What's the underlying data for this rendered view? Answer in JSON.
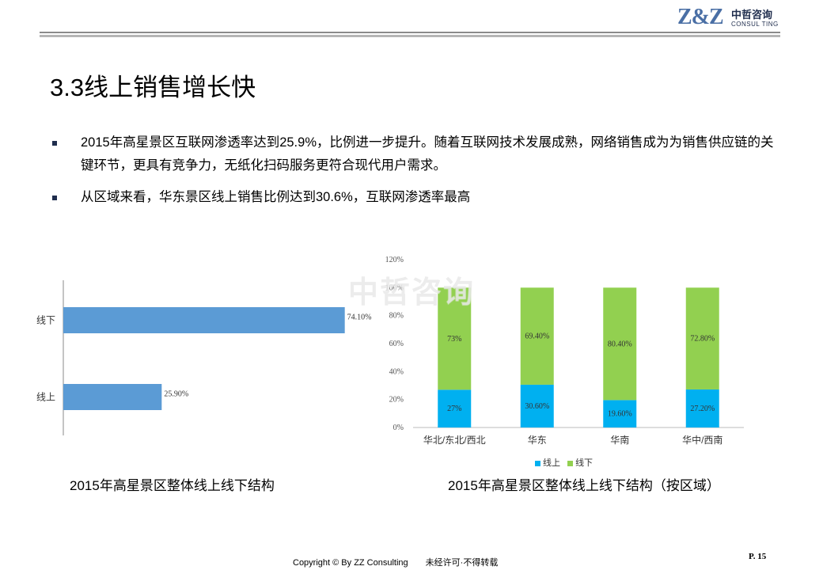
{
  "header": {
    "logo_mark": "Z&Z",
    "logo_cn": "中哲咨询",
    "logo_en": "CONSUL TING"
  },
  "title": "3.3线上销售增长快",
  "bullets": [
    "2015年高星景区互联网渗透率达到25.9%，比例进一步提升。随着互联网技术发展成熟，网络销售成为为销售供应链的关键环节，更具有竞争力，无纸化扫码服务更符合现代用户需求。",
    "从区域来看，华东景区线上销售比例达到30.6%，互联网渗透率最高"
  ],
  "watermark": "中哲咨询",
  "chart_data": [
    {
      "type": "bar",
      "orientation": "horizontal",
      "categories": [
        "线下",
        "线上"
      ],
      "values": [
        74.1,
        25.9
      ],
      "value_labels": [
        "74.10%",
        "25.90%"
      ],
      "title": "2015年高星景区整体线上线下结构",
      "xlim": [
        0,
        100
      ],
      "grid": false,
      "color": "#5b9bd5"
    },
    {
      "type": "bar",
      "stacked": true,
      "categories": [
        "华北/东北/西北",
        "华东",
        "华南",
        "华中/西南"
      ],
      "series": [
        {
          "name": "线上",
          "values": [
            27,
            30.6,
            19.6,
            27.2
          ],
          "labels": [
            "27%",
            "30.60%",
            "19.60%",
            "27.20%"
          ],
          "color": "#00b0f0"
        },
        {
          "name": "线下",
          "values": [
            73,
            69.4,
            80.4,
            72.8
          ],
          "labels": [
            "73%",
            "69.40%",
            "80.40%",
            "72.80%"
          ],
          "color": "#92d050"
        }
      ],
      "yticks": [
        "0%",
        "20%",
        "40%",
        "60%",
        "80%",
        "100%",
        "120%"
      ],
      "ylim": [
        0,
        120
      ],
      "title": "2015年高星景区整体线上线下结构（按区域）",
      "legend": "bottom",
      "grid": false
    }
  ],
  "footer": {
    "copyright": "Copyright © By  ZZ Consulting",
    "notice": "未经许可·不得转载",
    "page": "P. 15"
  }
}
